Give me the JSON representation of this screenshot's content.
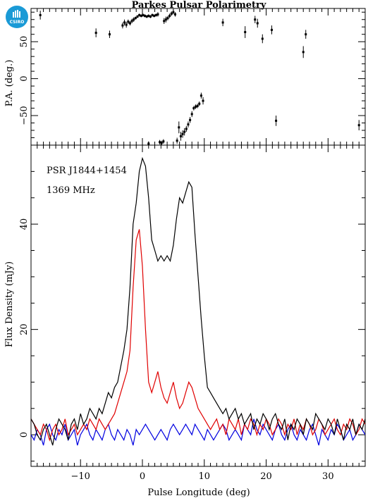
{
  "title": "Parkes Pulsar Polarimetry",
  "logo": {
    "text": "CSIRO",
    "color": "#1a9ad6"
  },
  "annotations": {
    "psr": "PSR J1844+1454",
    "freq": "1369 MHz"
  },
  "chart_data": [
    {
      "type": "scatter",
      "ylabel": "P.A. (deg.)",
      "xlim": [
        -18,
        36
      ],
      "ylim": [
        -90,
        95
      ],
      "yticks": [
        -50,
        0,
        50
      ],
      "ytick_labels": [
        "−50",
        "0",
        "50"
      ],
      "points": [
        {
          "x": -16.5,
          "y": 86,
          "err": 6
        },
        {
          "x": -7.5,
          "y": 62,
          "err": 6
        },
        {
          "x": -5.3,
          "y": 60,
          "err": 5
        },
        {
          "x": -3.2,
          "y": 72,
          "err": 4
        },
        {
          "x": -2.9,
          "y": 76,
          "err": 4
        },
        {
          "x": -2.6,
          "y": 73,
          "err": 4
        },
        {
          "x": -2.3,
          "y": 77,
          "err": 3
        },
        {
          "x": -2.0,
          "y": 75,
          "err": 3
        },
        {
          "x": -1.7,
          "y": 78,
          "err": 3
        },
        {
          "x": -1.4,
          "y": 80,
          "err": 3
        },
        {
          "x": -1.1,
          "y": 82,
          "err": 2
        },
        {
          "x": -0.8,
          "y": 84,
          "err": 2
        },
        {
          "x": -0.5,
          "y": 86,
          "err": 2
        },
        {
          "x": -0.2,
          "y": 85,
          "err": 2
        },
        {
          "x": 0.1,
          "y": 86,
          "err": 2
        },
        {
          "x": 0.4,
          "y": 85,
          "err": 2
        },
        {
          "x": 0.7,
          "y": 84,
          "err": 2
        },
        {
          "x": 1.0,
          "y": 85,
          "err": 2
        },
        {
          "x": 1.3,
          "y": 84,
          "err": 2
        },
        {
          "x": 1.6,
          "y": 86,
          "err": 2
        },
        {
          "x": 1.9,
          "y": 85,
          "err": 2
        },
        {
          "x": 2.2,
          "y": 86,
          "err": 2
        },
        {
          "x": 2.5,
          "y": 87,
          "err": 3
        },
        {
          "x": 3.5,
          "y": 78,
          "err": 4
        },
        {
          "x": 3.8,
          "y": 80,
          "err": 4
        },
        {
          "x": 4.1,
          "y": 82,
          "err": 3
        },
        {
          "x": 4.4,
          "y": 85,
          "err": 3
        },
        {
          "x": 4.7,
          "y": 88,
          "err": 3
        },
        {
          "x": 5.0,
          "y": 90,
          "err": 3
        },
        {
          "x": 5.3,
          "y": 87,
          "err": 3
        },
        {
          "x": 1.0,
          "y": -88,
          "err": 3
        },
        {
          "x": 2.8,
          "y": -86,
          "err": 3
        },
        {
          "x": 3.1,
          "y": -87,
          "err": 3
        },
        {
          "x": 3.4,
          "y": -85,
          "err": 3
        },
        {
          "x": 5.6,
          "y": -84,
          "err": 4
        },
        {
          "x": 5.9,
          "y": -66,
          "err": 8
        },
        {
          "x": 6.2,
          "y": -78,
          "err": 6
        },
        {
          "x": 6.5,
          "y": -75,
          "err": 5
        },
        {
          "x": 6.8,
          "y": -72,
          "err": 5
        },
        {
          "x": 7.1,
          "y": -68,
          "err": 4
        },
        {
          "x": 7.4,
          "y": -62,
          "err": 4
        },
        {
          "x": 7.7,
          "y": -56,
          "err": 4
        },
        {
          "x": 8.0,
          "y": -48,
          "err": 4
        },
        {
          "x": 8.3,
          "y": -40,
          "err": 3
        },
        {
          "x": 8.6,
          "y": -38,
          "err": 3
        },
        {
          "x": 8.9,
          "y": -37,
          "err": 3
        },
        {
          "x": 9.2,
          "y": -34,
          "err": 3
        },
        {
          "x": 9.5,
          "y": -23,
          "err": 4
        },
        {
          "x": 9.8,
          "y": -30,
          "err": 5
        },
        {
          "x": 13.0,
          "y": 76,
          "err": 5
        },
        {
          "x": 16.6,
          "y": 63,
          "err": 8
        },
        {
          "x": 18.2,
          "y": 80,
          "err": 5
        },
        {
          "x": 18.6,
          "y": 75,
          "err": 6
        },
        {
          "x": 19.4,
          "y": 54,
          "err": 6
        },
        {
          "x": 20.9,
          "y": 66,
          "err": 6
        },
        {
          "x": 21.6,
          "y": -57,
          "err": 7
        },
        {
          "x": 26.0,
          "y": 36,
          "err": 8
        },
        {
          "x": 26.4,
          "y": 60,
          "err": 6
        },
        {
          "x": 35.0,
          "y": -63,
          "err": 7
        }
      ]
    },
    {
      "type": "line",
      "xlabel": "Pulse Longitude (deg)",
      "ylabel": "Flux Density (mJy)",
      "xlim": [
        -18,
        36
      ],
      "ylim": [
        -6,
        55
      ],
      "xticks": [
        -10,
        0,
        10,
        20,
        30
      ],
      "xtick_labels": [
        "−10",
        "0",
        "10",
        "20",
        "30"
      ],
      "yticks": [
        0,
        20,
        40
      ],
      "ytick_labels": [
        "0",
        "20",
        "40"
      ],
      "series": [
        {
          "color": "#000000",
          "x": [
            -18,
            -17.5,
            -17,
            -16.5,
            -16,
            -15.5,
            -15,
            -14.5,
            -14,
            -13.5,
            -13,
            -12.5,
            -12,
            -11.5,
            -11,
            -10.5,
            -10,
            -9.5,
            -9,
            -8.5,
            -8,
            -7.5,
            -7,
            -6.5,
            -6,
            -5.5,
            -5,
            -4.5,
            -4,
            -3.5,
            -3,
            -2.5,
            -2,
            -1.5,
            -1,
            -0.5,
            0,
            0.5,
            1,
            1.5,
            2,
            2.5,
            3,
            3.5,
            4,
            4.5,
            5,
            5.5,
            6,
            6.5,
            7,
            7.5,
            8,
            8.5,
            9,
            9.5,
            10,
            10.5,
            11,
            11.5,
            12,
            12.5,
            13,
            13.5,
            14,
            14.5,
            15,
            15.5,
            16,
            16.5,
            17,
            17.5,
            18,
            18.5,
            19,
            19.5,
            20,
            20.5,
            21,
            21.5,
            22,
            22.5,
            23,
            23.5,
            24,
            24.5,
            25,
            25.5,
            26,
            26.5,
            27,
            27.5,
            28,
            28.5,
            29,
            29.5,
            30,
            30.5,
            31,
            31.5,
            32,
            32.5,
            33,
            33.5,
            34,
            34.5,
            35,
            35.5,
            36
          ],
          "y": [
            3,
            2,
            0,
            -1,
            1,
            2,
            0,
            -2,
            1,
            3,
            2,
            1,
            -1,
            2,
            3,
            1,
            4,
            2,
            3,
            5,
            4,
            3,
            5,
            4,
            6,
            8,
            7,
            9,
            10,
            13,
            16,
            20,
            28,
            40,
            44,
            50,
            52.5,
            51,
            45,
            37,
            35,
            33,
            34,
            33,
            34,
            33,
            36,
            41,
            45,
            44,
            46,
            48,
            47,
            38,
            30,
            22,
            15,
            9,
            8,
            7,
            6,
            5,
            4,
            5,
            3,
            4,
            5,
            3,
            4,
            2,
            3,
            4,
            1,
            3,
            2,
            4,
            3,
            1,
            3,
            4,
            2,
            1,
            3,
            -1,
            2,
            1,
            3,
            2,
            0,
            3,
            2,
            1,
            4,
            3,
            2,
            1,
            3,
            2,
            0,
            3,
            1,
            -1,
            2,
            1,
            3,
            0,
            2,
            1,
            3
          ]
        },
        {
          "color": "#e00000",
          "x": [
            -18,
            -17.5,
            -17,
            -16.5,
            -16,
            -15.5,
            -15,
            -14.5,
            -14,
            -13.5,
            -13,
            -12.5,
            -12,
            -11.5,
            -11,
            -10.5,
            -10,
            -9.5,
            -9,
            -8.5,
            -8,
            -7.5,
            -7,
            -6.5,
            -6,
            -5.5,
            -5,
            -4.5,
            -4,
            -3.5,
            -3,
            -2.5,
            -2,
            -1.5,
            -1,
            -0.5,
            0,
            0.5,
            1,
            1.5,
            2,
            2.5,
            3,
            3.5,
            4,
            4.5,
            5,
            5.5,
            6,
            6.5,
            7,
            7.5,
            8,
            8.5,
            9,
            9.5,
            10,
            10.5,
            11,
            11.5,
            12,
            12.5,
            13,
            13.5,
            14,
            14.5,
            15,
            15.5,
            16,
            16.5,
            17,
            17.5,
            18,
            18.5,
            19,
            19.5,
            20,
            20.5,
            21,
            21.5,
            22,
            22.5,
            23,
            23.5,
            24,
            24.5,
            25,
            25.5,
            26,
            26.5,
            27,
            27.5,
            28,
            28.5,
            29,
            29.5,
            30,
            30.5,
            31,
            31.5,
            32,
            32.5,
            33,
            33.5,
            34,
            34.5,
            35,
            35.5,
            36
          ],
          "y": [
            3,
            2,
            1,
            0,
            2,
            1,
            -1,
            1,
            2,
            0,
            1,
            3,
            0,
            1,
            2,
            0,
            1,
            2,
            1,
            3,
            2,
            1,
            3,
            2,
            1,
            2,
            3,
            4,
            6,
            8,
            10,
            12,
            16,
            28,
            37,
            39,
            32,
            20,
            10,
            8,
            10,
            12,
            9,
            7,
            6,
            8,
            10,
            7,
            5,
            6,
            8,
            10,
            9,
            7,
            5,
            4,
            3,
            2,
            1,
            2,
            3,
            1,
            2,
            0,
            3,
            2,
            1,
            3,
            0,
            2,
            1,
            3,
            2,
            0,
            2,
            1,
            3,
            2,
            0,
            1,
            3,
            2,
            0,
            2,
            1,
            3,
            0,
            2,
            1,
            3,
            2,
            0,
            1,
            3,
            2,
            0,
            1,
            2,
            3,
            1,
            0,
            2,
            1,
            3,
            2,
            0,
            1,
            3,
            2
          ]
        },
        {
          "color": "#0000e0",
          "x": [
            -18,
            -17.5,
            -17,
            -16.5,
            -16,
            -15.5,
            -15,
            -14.5,
            -14,
            -13.5,
            -13,
            -12.5,
            -12,
            -11.5,
            -11,
            -10.5,
            -10,
            -9.5,
            -9,
            -8.5,
            -8,
            -7.5,
            -7,
            -6.5,
            -6,
            -5.5,
            -5,
            -4.5,
            -4,
            -3.5,
            -3,
            -2.5,
            -2,
            -1.5,
            -1,
            -0.5,
            0,
            0.5,
            1,
            1.5,
            2,
            2.5,
            3,
            3.5,
            4,
            4.5,
            5,
            5.5,
            6,
            6.5,
            7,
            7.5,
            8,
            8.5,
            9,
            9.5,
            10,
            10.5,
            11,
            11.5,
            12,
            12.5,
            13,
            13.5,
            14,
            14.5,
            15,
            15.5,
            16,
            16.5,
            17,
            17.5,
            18,
            18.5,
            19,
            19.5,
            20,
            20.5,
            21,
            21.5,
            22,
            22.5,
            23,
            23.5,
            24,
            24.5,
            25,
            25.5,
            26,
            26.5,
            27,
            27.5,
            28,
            28.5,
            29,
            29.5,
            30,
            30.5,
            31,
            31.5,
            32,
            32.5,
            33,
            33.5,
            34,
            34.5,
            35,
            35.5,
            36
          ],
          "y": [
            0,
            -1,
            1,
            0,
            -2,
            1,
            2,
            0,
            -1,
            1,
            0,
            2,
            -1,
            0,
            1,
            -2,
            0,
            1,
            2,
            0,
            -1,
            1,
            0,
            -1,
            1,
            2,
            0,
            -1,
            1,
            0,
            -1,
            1,
            0,
            -2,
            1,
            0,
            1,
            2,
            1,
            0,
            -1,
            0,
            1,
            0,
            -1,
            1,
            2,
            1,
            0,
            1,
            2,
            1,
            0,
            2,
            1,
            0,
            -1,
            1,
            0,
            -1,
            0,
            1,
            2,
            1,
            -1,
            0,
            1,
            0,
            -1,
            2,
            1,
            0,
            3,
            1,
            0,
            2,
            1,
            0,
            -1,
            1,
            2,
            0,
            -1,
            1,
            2,
            0,
            -1,
            1,
            0,
            -1,
            1,
            2,
            0,
            -2,
            1,
            0,
            -1,
            1,
            0,
            2,
            1,
            -1,
            0,
            1,
            -1,
            0,
            2,
            1,
            0
          ]
        }
      ]
    }
  ]
}
